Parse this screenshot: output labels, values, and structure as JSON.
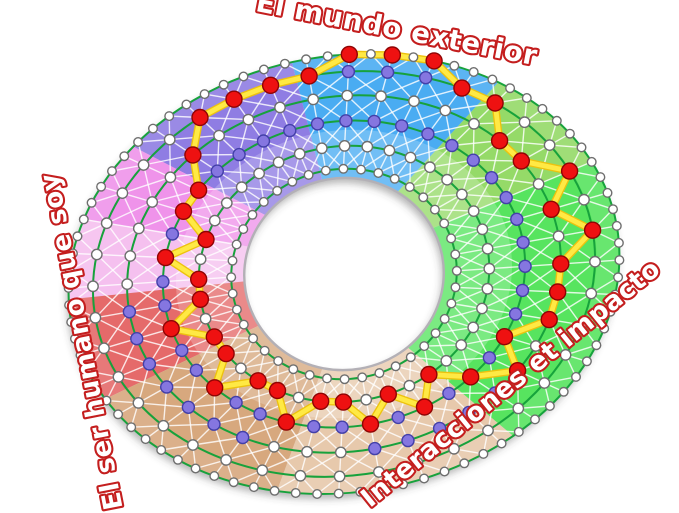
{
  "labels": {
    "top": "El mundo exterior",
    "left": "El ser humano que soy",
    "right": "Interacciones et impacto"
  },
  "wheel": {
    "rings": 6,
    "spokes": 40,
    "outer_nodes": 80,
    "sectors": [
      {
        "name": "blue",
        "color": "#4aacf2",
        "from": 58,
        "to": 103
      },
      {
        "name": "purple",
        "color": "#8f7de3",
        "from": 103,
        "to": 142
      },
      {
        "name": "pink-bright",
        "color": "#ef93ea",
        "from": 142,
        "to": 163
      },
      {
        "name": "pink-light",
        "color": "#f5c0ef",
        "from": 163,
        "to": 184
      },
      {
        "name": "red",
        "color": "#e56a6a",
        "from": 184,
        "to": 212
      },
      {
        "name": "tan-dark",
        "color": "#d7a87e",
        "from": 212,
        "to": 258
      },
      {
        "name": "tan-light",
        "color": "#e7c9ac",
        "from": 258,
        "to": 310
      },
      {
        "name": "green-bright",
        "color": "#57e45f",
        "from": 310,
        "to": 388
      },
      {
        "name": "green-light",
        "color": "#95da68",
        "from": 388,
        "to": 418
      }
    ],
    "selected_levels": [
      5,
      4,
      5,
      4,
      4,
      5,
      5,
      6,
      6,
      6,
      5,
      5,
      5,
      5,
      4,
      3,
      3,
      2,
      3,
      2,
      2,
      3,
      2,
      2,
      3,
      2,
      2,
      3,
      2,
      2,
      3,
      2,
      3,
      2,
      3,
      4,
      3,
      4,
      4,
      4
    ],
    "secondary_levels": [
      [
        3
      ],
      [
        3
      ],
      [
        3
      ],
      [
        3
      ],
      [
        3
      ],
      [
        3
      ],
      [
        3,
        5
      ],
      [
        3,
        5
      ],
      [
        3,
        5
      ],
      [
        3,
        5
      ],
      [
        3,
        5
      ],
      [
        3
      ],
      [
        3
      ],
      [
        3
      ],
      [
        3
      ],
      [
        3
      ],
      [
        3
      ],
      [
        3
      ],
      [
        3
      ],
      [
        3
      ],
      [
        3,
        4
      ],
      [
        3,
        4
      ],
      [
        3,
        4
      ],
      [
        3,
        4
      ],
      [
        3,
        4
      ],
      [
        3,
        4
      ],
      [
        3,
        4
      ],
      [
        3
      ],
      [
        3
      ],
      [
        3
      ],
      [
        3,
        4
      ],
      [
        3,
        4
      ],
      [
        3,
        4
      ],
      [
        3,
        4
      ],
      [
        3,
        4
      ],
      [
        3,
        4
      ],
      [
        3
      ],
      [
        3
      ],
      [
        3
      ],
      [
        3
      ]
    ],
    "colors": {
      "ring_line": "#17a23c",
      "mesh_line": "#ffffff",
      "path_yellow": "#ffe944",
      "path_yellow_edge": "#edc20e",
      "node_white": "#ffffff",
      "node_white_border": "#6e6e6e",
      "node_purple": "#8576e0",
      "node_purple_border": "#4340a8",
      "node_red": "#ee1111",
      "node_red_border": "#8f0404",
      "rim": "#b3b0b6",
      "label_color": "#c41e1e"
    }
  }
}
